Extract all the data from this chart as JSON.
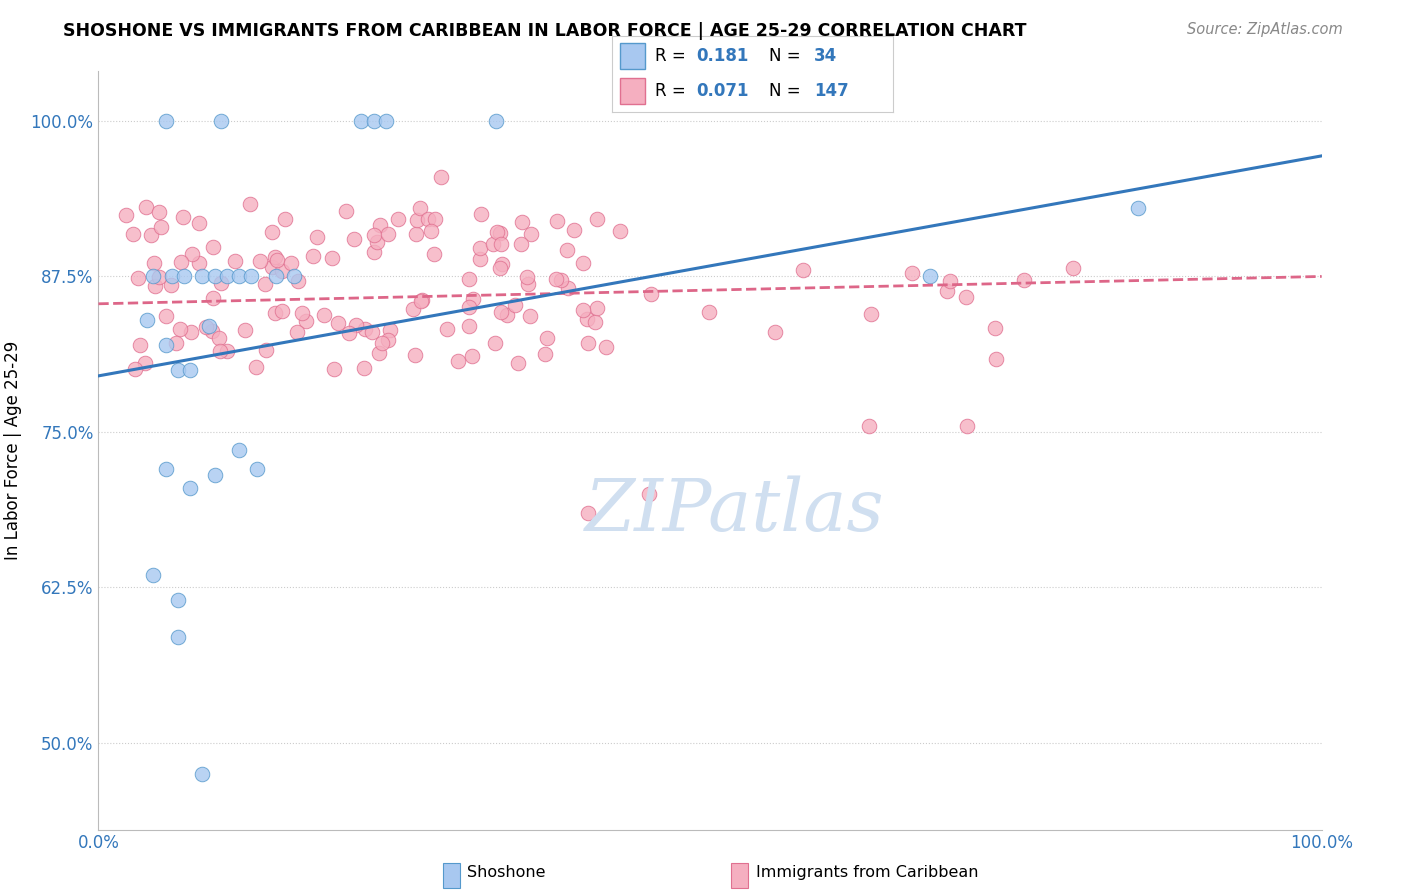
{
  "title": "SHOSHONE VS IMMIGRANTS FROM CARIBBEAN IN LABOR FORCE | AGE 25-29 CORRELATION CHART",
  "source": "Source: ZipAtlas.com",
  "ylabel": "In Labor Force | Age 25-29",
  "xlim": [
    0.0,
    1.0
  ],
  "ylim": [
    0.43,
    1.04
  ],
  "yticks": [
    0.5,
    0.625,
    0.75,
    0.875,
    1.0
  ],
  "ytick_labels": [
    "50.0%",
    "62.5%",
    "75.0%",
    "87.5%",
    "100.0%"
  ],
  "shoshone_R": 0.181,
  "shoshone_N": 34,
  "caribbean_R": 0.071,
  "caribbean_N": 147,
  "shoshone_color": "#a8c8f0",
  "caribbean_color": "#f5afc0",
  "shoshone_edge_color": "#5599cc",
  "caribbean_edge_color": "#e07090",
  "shoshone_line_color": "#3377bb",
  "caribbean_line_color": "#dd6688",
  "watermark_color": "#d0dff0",
  "legend_R_color": "#3377bb",
  "xtick_color": "#3377bb",
  "ytick_color": "#3377bb"
}
